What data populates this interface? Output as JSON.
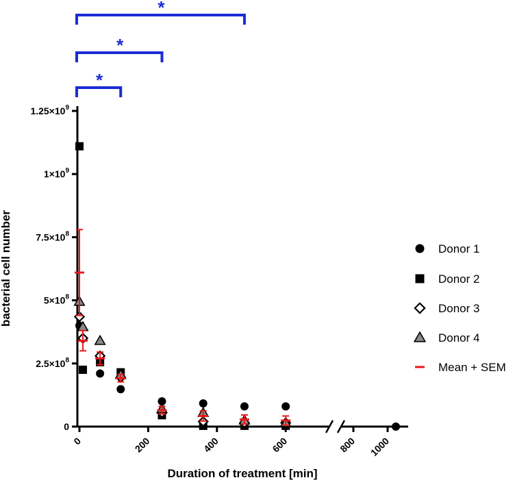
{
  "colors": {
    "axis": "#000000",
    "mean": "#e8191b",
    "significance": "#1a2dd6",
    "donor4_fill": "#8a8a8a"
  },
  "chart_data": {
    "type": "scatter",
    "title": "",
    "xlabel": "Duration of treatment [min]",
    "ylabel": "bacterial cell number",
    "xlim_segments": [
      [
        0,
        700
      ],
      [
        750,
        1100
      ]
    ],
    "axis_break": true,
    "ylim": [
      0,
      1250000000
    ],
    "x_ticks": [
      {
        "value": 0,
        "label": "0"
      },
      {
        "value": 200,
        "label": "200"
      },
      {
        "value": 400,
        "label": "400"
      },
      {
        "value": 600,
        "label": "600"
      },
      {
        "value": 800,
        "label": "800"
      },
      {
        "value": 1000,
        "label": "1000"
      }
    ],
    "y_ticks": [
      {
        "value": 0,
        "mant": "0",
        "exp": ""
      },
      {
        "value": 250000000,
        "mant": "2.5×10",
        "exp": "8"
      },
      {
        "value": 500000000,
        "mant": "5×10",
        "exp": "8"
      },
      {
        "value": 750000000,
        "mant": "7.5×10",
        "exp": "8"
      },
      {
        "value": 1000000000,
        "mant": "1×10",
        "exp": "9"
      },
      {
        "value": 1250000000,
        "mant": "1.25×10",
        "exp": "9"
      }
    ],
    "series": [
      {
        "name": "Donor 1",
        "marker": "circle",
        "points": [
          [
            0,
            400000000
          ],
          [
            60,
            210000000
          ],
          [
            120,
            148000000
          ],
          [
            240,
            100000000
          ],
          [
            360,
            92000000
          ],
          [
            480,
            80000000
          ],
          [
            600,
            80000000
          ],
          [
            1050,
            0
          ]
        ]
      },
      {
        "name": "Donor 2",
        "marker": "square",
        "points": [
          [
            0,
            1110000000
          ],
          [
            10,
            225000000
          ],
          [
            60,
            255000000
          ],
          [
            120,
            215000000
          ],
          [
            240,
            45000000
          ],
          [
            360,
            3000000
          ],
          [
            480,
            3000000
          ],
          [
            600,
            3000000
          ]
        ]
      },
      {
        "name": "Donor 3",
        "marker": "diamond",
        "points": [
          [
            0,
            435000000
          ],
          [
            10,
            350000000
          ],
          [
            60,
            280000000
          ],
          [
            120,
            195000000
          ],
          [
            240,
            55000000
          ],
          [
            360,
            20000000
          ],
          [
            480,
            15000000
          ],
          [
            600,
            15000000
          ]
        ]
      },
      {
        "name": "Donor 4",
        "marker": "triangle",
        "points": [
          [
            0,
            495000000
          ],
          [
            10,
            395000000
          ],
          [
            60,
            340000000
          ],
          [
            120,
            205000000
          ],
          [
            240,
            70000000
          ],
          [
            360,
            55000000
          ],
          [
            480,
            25000000
          ],
          [
            600,
            15000000
          ]
        ]
      }
    ],
    "mean_sem": {
      "name": "Mean + SEM",
      "points": [
        {
          "x": 0,
          "mean": 610000000,
          "sem": 170000000
        },
        {
          "x": 10,
          "mean": 340000000,
          "sem": 40000000
        },
        {
          "x": 60,
          "mean": 270000000,
          "sem": 25000000
        },
        {
          "x": 120,
          "mean": 192000000,
          "sem": 15000000
        },
        {
          "x": 240,
          "mean": 65000000,
          "sem": 15000000
        },
        {
          "x": 360,
          "mean": 42000000,
          "sem": 20000000
        },
        {
          "x": 480,
          "mean": 28000000,
          "sem": 18000000
        },
        {
          "x": 600,
          "mean": 24000000,
          "sem": 18000000
        }
      ]
    },
    "significance": [
      {
        "from": 0,
        "to": 120,
        "level": 1,
        "label": "*"
      },
      {
        "from": 0,
        "to": 240,
        "level": 2,
        "label": "*"
      },
      {
        "from": 0,
        "to": 480,
        "level": 3,
        "label": "*"
      }
    ],
    "legend_position": "right"
  }
}
